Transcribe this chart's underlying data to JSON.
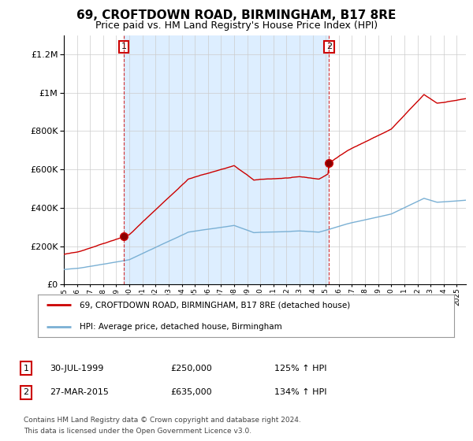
{
  "title": "69, CROFTDOWN ROAD, BIRMINGHAM, B17 8RE",
  "subtitle": "Price paid vs. HM Land Registry's House Price Index (HPI)",
  "title_fontsize": 11,
  "subtitle_fontsize": 9,
  "sale1_year": 1999.58,
  "sale1_price": 250000,
  "sale1_label": "1",
  "sale2_year": 2015.24,
  "sale2_price": 635000,
  "sale2_label": "2",
  "legend_line1": "69, CROFTDOWN ROAD, BIRMINGHAM, B17 8RE (detached house)",
  "legend_line2": "HPI: Average price, detached house, Birmingham",
  "red_color": "#cc0000",
  "blue_color": "#7ab0d4",
  "fill_color": "#ddeeff",
  "background_color": "#ffffff",
  "grid_color": "#cccccc",
  "ylim": [
    0,
    1300000
  ],
  "xlim_start": 1995.0,
  "xlim_end": 2025.7,
  "row1_num": "1",
  "row1_date": "30-JUL-1999",
  "row1_price": "£250,000",
  "row1_hpi": "125% ↑ HPI",
  "row2_num": "2",
  "row2_date": "27-MAR-2015",
  "row2_price": "£635,000",
  "row2_hpi": "134% ↑ HPI",
  "footnote1": "Contains HM Land Registry data © Crown copyright and database right 2024.",
  "footnote2": "This data is licensed under the Open Government Licence v3.0."
}
